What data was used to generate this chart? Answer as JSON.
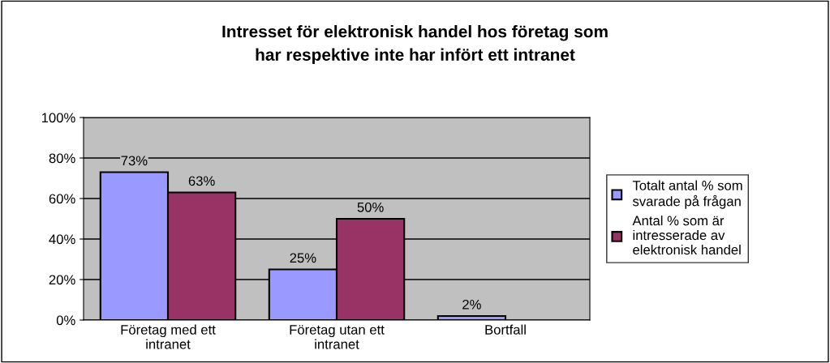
{
  "chart_data": {
    "type": "bar",
    "title": "Intresset för elektronisk handel hos företag som\nhar respektive inte har infört ett intranet",
    "categories": [
      "Företag med ett\nintranet",
      "Företag utan ett\nintranet",
      "Bortfall"
    ],
    "series": [
      {
        "name": "Totalt antal % som\nsvarade på frågan",
        "color": "#9999ff",
        "values": [
          73,
          25,
          2
        ],
        "value_labels": [
          "73%",
          "25%",
          "2%"
        ]
      },
      {
        "name": "Antal % som är\nintresserade av\nelektronisk handel",
        "color": "#993366",
        "values": [
          63,
          50,
          null
        ],
        "value_labels": [
          "63%",
          "50%",
          null
        ]
      }
    ],
    "ylim": [
      0,
      100
    ],
    "yticks": [
      {
        "value": 0,
        "label": "0%"
      },
      {
        "value": 20,
        "label": "20%"
      },
      {
        "value": 40,
        "label": "40%"
      },
      {
        "value": 60,
        "label": "60%"
      },
      {
        "value": 80,
        "label": "80%"
      },
      {
        "value": 100,
        "label": "100%"
      }
    ],
    "grid": "y",
    "legend": "right"
  }
}
